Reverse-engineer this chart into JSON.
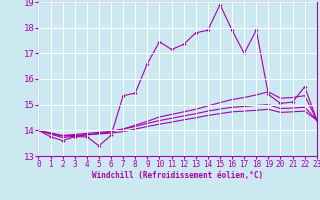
{
  "xlabel": "Windchill (Refroidissement éolien,°C)",
  "bg_color": "#cce8f0",
  "line_color": "#aa00aa",
  "grid_color": "#ffffff",
  "xlim": [
    0,
    23
  ],
  "ylim": [
    13,
    19
  ],
  "yticks": [
    13,
    14,
    15,
    16,
    17,
    18,
    19
  ],
  "xticks": [
    0,
    1,
    2,
    3,
    4,
    5,
    6,
    7,
    8,
    9,
    10,
    11,
    12,
    13,
    14,
    15,
    16,
    17,
    18,
    19,
    20,
    21,
    22,
    23
  ],
  "curve1_x": [
    0,
    1,
    2,
    3,
    4,
    5,
    6,
    7,
    8,
    9,
    10,
    11,
    12,
    13,
    14,
    15,
    16,
    17,
    18,
    19,
    20,
    21,
    22,
    23
  ],
  "curve1_y": [
    14.0,
    13.75,
    13.6,
    13.75,
    13.75,
    13.4,
    13.8,
    15.35,
    15.45,
    16.6,
    17.45,
    17.15,
    17.35,
    17.8,
    17.9,
    18.9,
    17.9,
    17.0,
    17.9,
    15.4,
    15.05,
    15.1,
    15.7,
    14.4
  ],
  "curve2_x": [
    0,
    23
  ],
  "curve2_y": [
    14.0,
    14.4
  ],
  "curve3_x": [
    0,
    23
  ],
  "curve3_y": [
    14.0,
    14.4
  ],
  "curve4_x": [
    0,
    23
  ],
  "curve4_y": [
    14.0,
    14.4
  ],
  "line2_x": [
    0,
    1,
    2,
    3,
    4,
    5,
    6,
    7,
    8,
    9,
    10,
    11,
    12,
    13,
    14,
    15,
    16,
    17,
    18,
    19,
    20,
    21,
    22,
    23
  ],
  "line2_y": [
    14.0,
    13.85,
    13.72,
    13.77,
    13.82,
    13.88,
    13.94,
    14.05,
    14.2,
    14.35,
    14.52,
    14.62,
    14.72,
    14.82,
    14.95,
    15.08,
    15.2,
    15.28,
    15.38,
    15.5,
    15.25,
    15.28,
    15.35,
    14.4
  ],
  "line3_x": [
    0,
    1,
    2,
    3,
    4,
    5,
    6,
    7,
    8,
    9,
    10,
    11,
    12,
    13,
    14,
    15,
    16,
    17,
    18,
    19,
    20,
    21,
    22,
    23
  ],
  "line3_y": [
    14.0,
    13.9,
    13.8,
    13.84,
    13.88,
    13.92,
    13.96,
    14.05,
    14.15,
    14.27,
    14.38,
    14.47,
    14.56,
    14.65,
    14.75,
    14.83,
    14.9,
    14.93,
    14.97,
    15.0,
    14.85,
    14.87,
    14.9,
    14.4
  ],
  "line4_x": [
    0,
    1,
    2,
    3,
    4,
    5,
    6,
    7,
    8,
    9,
    10,
    11,
    12,
    13,
    14,
    15,
    16,
    17,
    18,
    19,
    20,
    21,
    22,
    23
  ],
  "line4_y": [
    14.0,
    13.88,
    13.78,
    13.8,
    13.83,
    13.86,
    13.89,
    13.95,
    14.05,
    14.15,
    14.24,
    14.32,
    14.41,
    14.49,
    14.58,
    14.65,
    14.72,
    14.75,
    14.78,
    14.82,
    14.7,
    14.72,
    14.75,
    14.4
  ]
}
